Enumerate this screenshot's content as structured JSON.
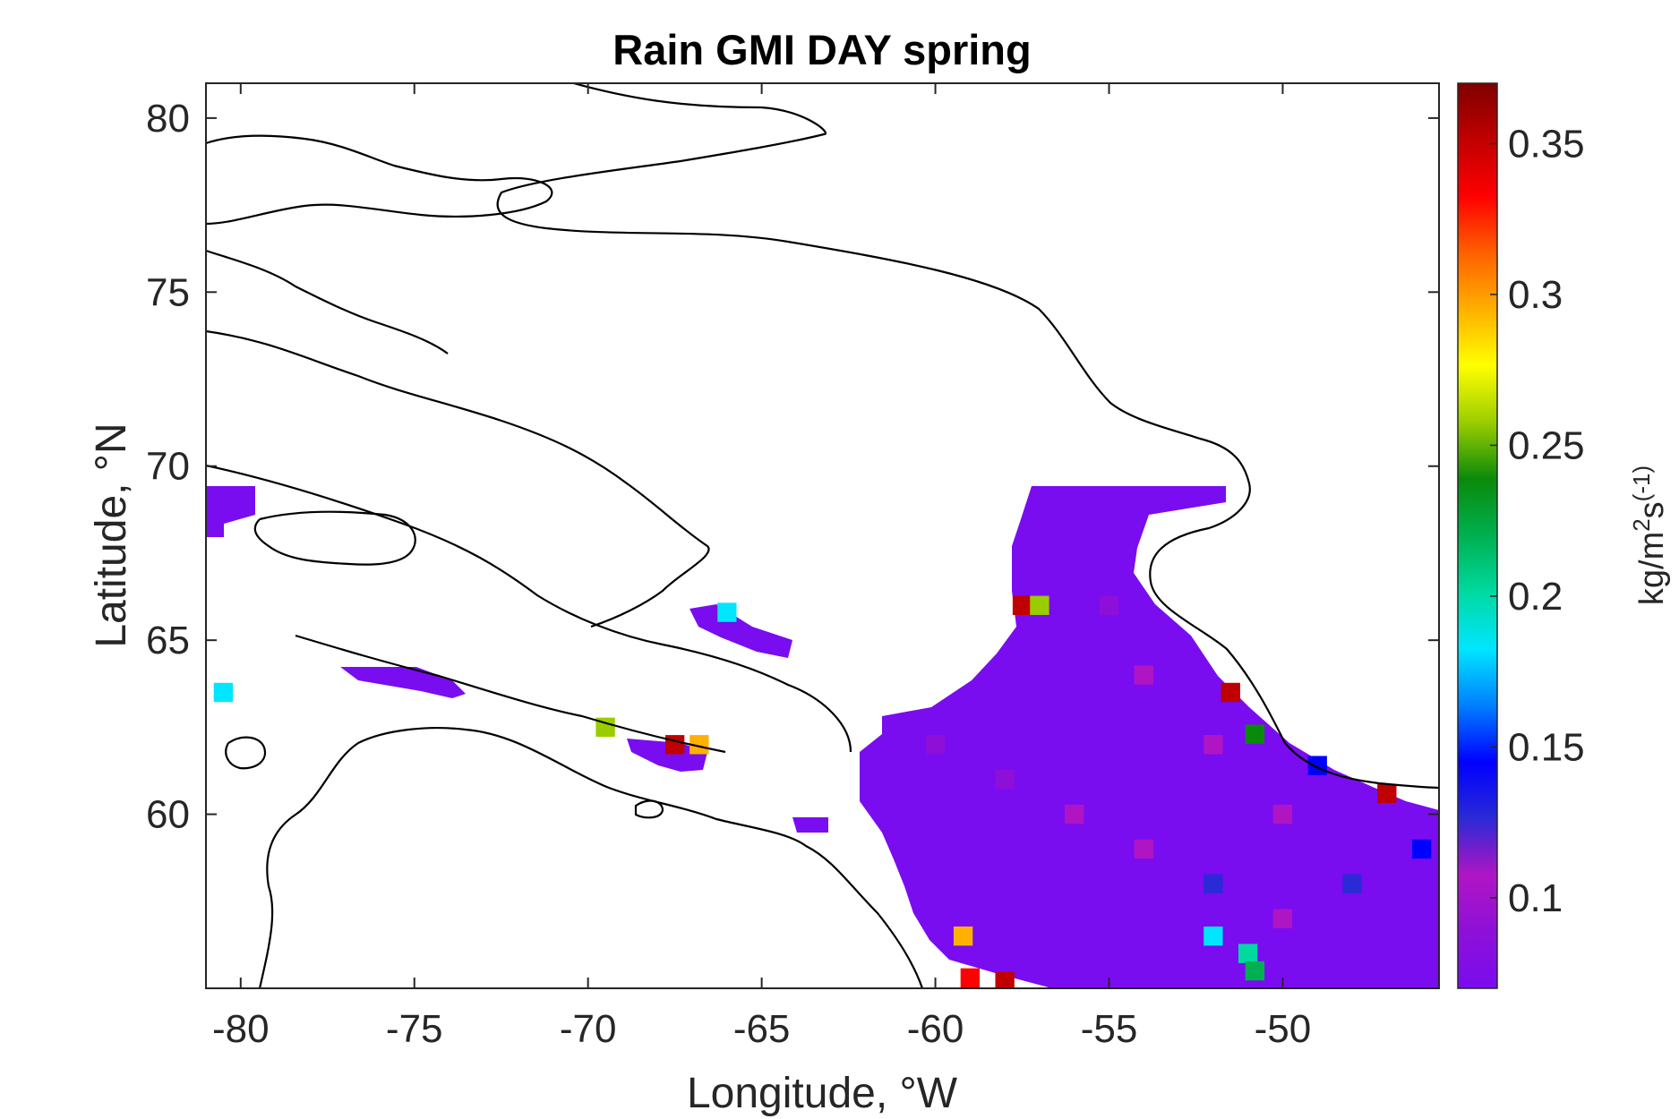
{
  "chart_data": {
    "type": "heatmap",
    "title": "Rain GMI DAY spring",
    "xlabel": "Longitude, °W",
    "ylabel": "Latitude, °N",
    "xlim": [
      -81,
      -45.5
    ],
    "ylim": [
      55,
      81
    ],
    "xticks": [
      -80,
      -75,
      -70,
      -65,
      -60,
      -55,
      -50
    ],
    "xtick_labels": [
      "-80",
      "-75",
      "-70",
      "-65",
      "-60",
      "-55",
      "-50"
    ],
    "yticks": [
      60,
      65,
      70,
      75,
      80
    ],
    "ytick_labels": [
      "60",
      "65",
      "70",
      "75",
      "80"
    ],
    "colorbar": {
      "label_base": "kg/m",
      "label_sup": "2",
      "label_mid": "s",
      "label_exp": "(-1)",
      "range": [
        0.07,
        0.37
      ],
      "ticks": [
        0.1,
        0.15,
        0.2,
        0.25,
        0.3,
        0.35
      ],
      "tick_labels": [
        "0.1",
        "0.15",
        "0.2",
        "0.25",
        "0.3",
        "0.35"
      ],
      "colormap": [
        "#7a0cf0",
        "#8e10d8",
        "#b015c4",
        "#2a2ad6",
        "#0000ff",
        "#0080ff",
        "#00e6ff",
        "#00d9a0",
        "#00b050",
        "#0a8a0a",
        "#9acd00",
        "#ffff00",
        "#ffb000",
        "#ff6000",
        "#ff0000",
        "#c00000",
        "#800000"
      ]
    },
    "data_region_summary": "Dominant values ~0.08-0.12 over ocean; higher patches 0.15-0.2 near 51-53°W, 56-57°N; isolated high pixels near coasts",
    "cells": [
      [
        -60,
        62,
        0.09
      ],
      [
        -58,
        61,
        0.095
      ],
      [
        -56,
        60,
        0.1
      ],
      [
        -54,
        59,
        0.11
      ],
      [
        -52,
        58,
        0.12
      ],
      [
        -50,
        57,
        0.11
      ],
      [
        -48,
        58,
        0.12
      ],
      [
        -52,
        56.5,
        0.18
      ],
      [
        -51,
        56,
        0.2
      ],
      [
        -50.8,
        55.5,
        0.22
      ],
      [
        -55,
        66,
        0.09
      ],
      [
        -54,
        64,
        0.1
      ],
      [
        -52,
        62,
        0.11
      ],
      [
        -50,
        60,
        0.1
      ],
      [
        -46,
        59,
        0.15
      ],
      [
        -57.5,
        66,
        0.35
      ],
      [
        -57,
        66,
        0.26
      ],
      [
        -59,
        55.3,
        0.33
      ],
      [
        -58,
        55.2,
        0.36
      ],
      [
        -67.5,
        62,
        0.36
      ],
      [
        -66.8,
        62,
        0.3
      ],
      [
        -69.5,
        62.5,
        0.25
      ],
      [
        -59.2,
        56.5,
        0.3
      ],
      [
        -66,
        65.8,
        0.19
      ],
      [
        -80.5,
        63.5,
        0.18
      ],
      [
        -51.5,
        63.5,
        0.35
      ],
      [
        -50.8,
        62.3,
        0.24
      ],
      [
        -49,
        61.4,
        0.15
      ],
      [
        -47,
        60.6,
        0.35
      ]
    ]
  }
}
